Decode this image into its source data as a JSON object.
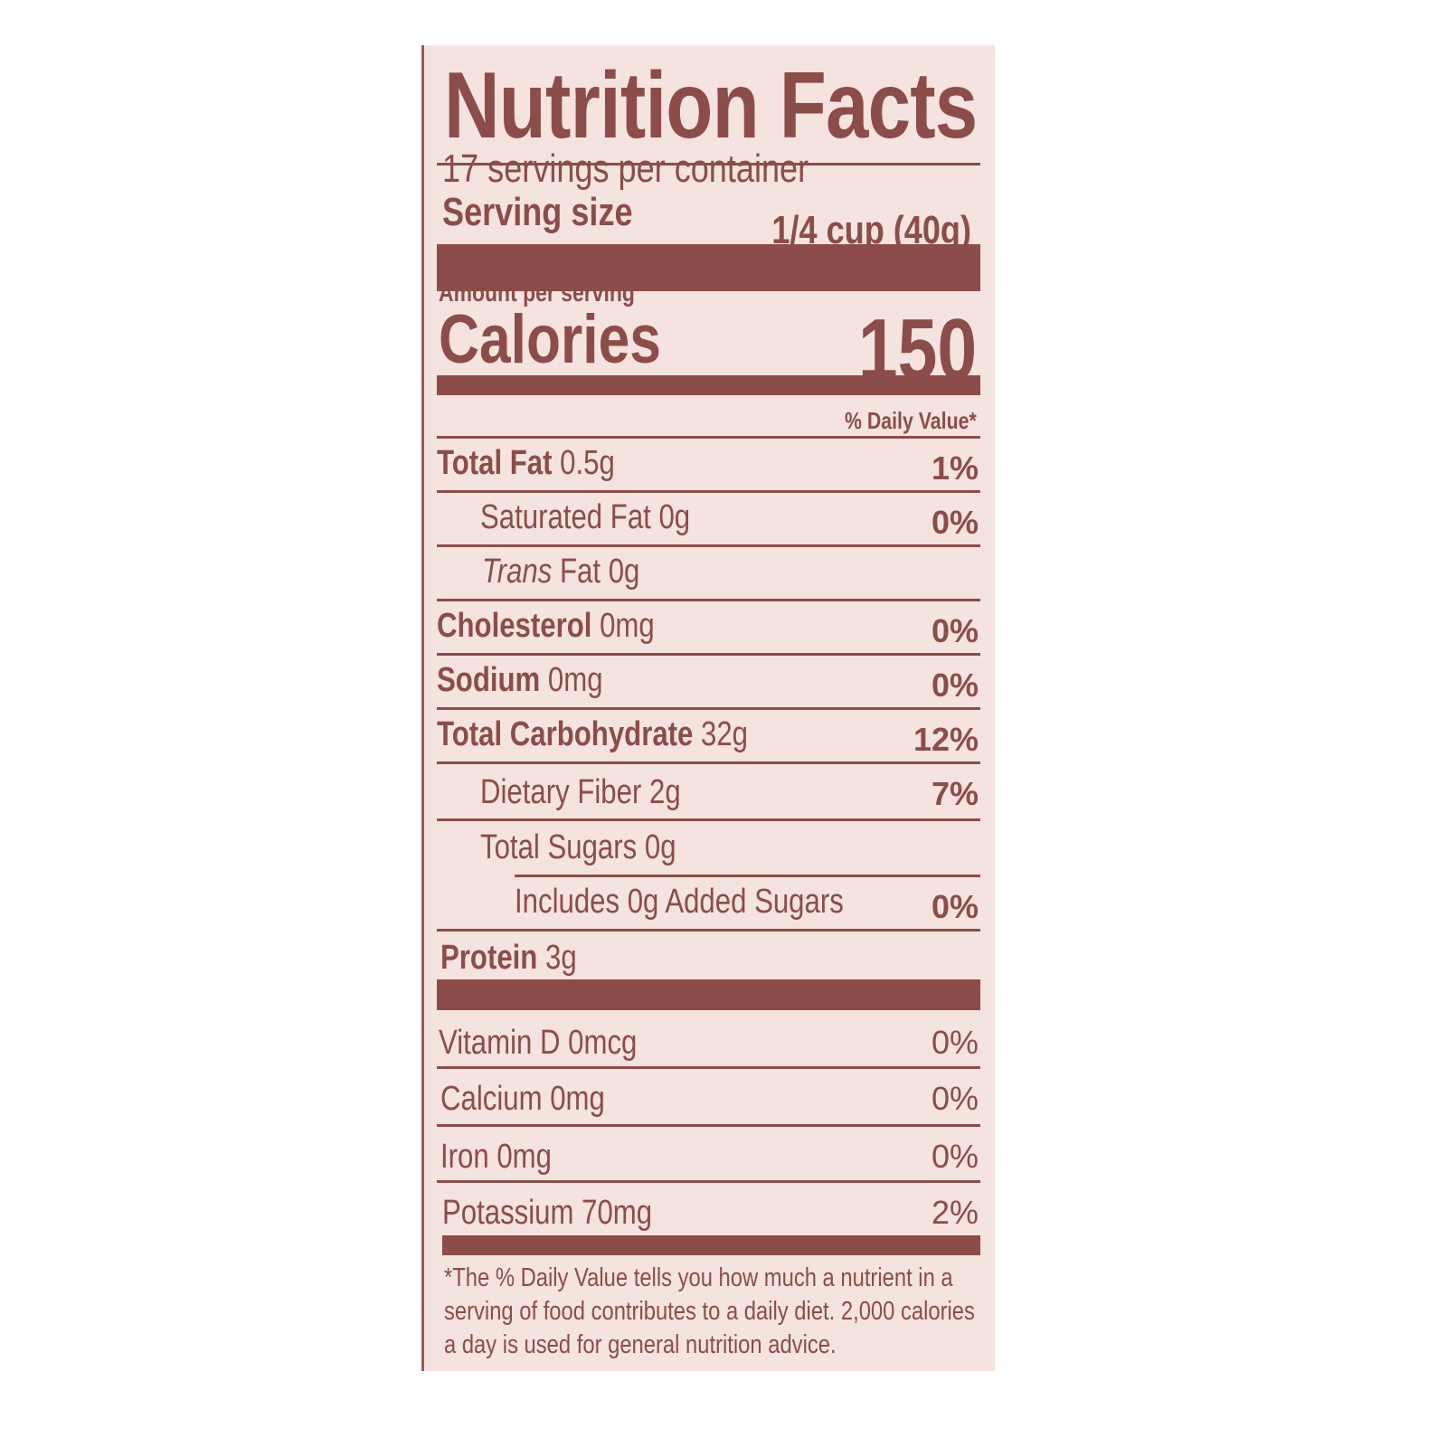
{
  "title": "Nutrition Facts",
  "servings_per_container": "17 servings per container",
  "serving_size_label": "Serving size",
  "serving_size_value": "1/4 cup (40g)",
  "amount_per_serving": "Amount per serving",
  "calories_label": "Calories",
  "calories_value": "150",
  "daily_value_header": "% Daily Value*",
  "nutrients": [
    {
      "name": "Total Fat",
      "amount": "0.5g",
      "dv": "1%"
    },
    {
      "name": "Saturated Fat",
      "amount": "0g",
      "dv": "0%"
    },
    {
      "name_italic": "Trans",
      "name": "Fat",
      "amount": "0g",
      "dv": ""
    },
    {
      "name": "Cholesterol",
      "amount": "0mg",
      "dv": "0%"
    },
    {
      "name": "Sodium",
      "amount": "0mg",
      "dv": "0%"
    },
    {
      "name": "Total Carbohydrate",
      "amount": "32g",
      "dv": "12%"
    },
    {
      "name": "Dietary Fiber",
      "amount": "2g",
      "dv": "7%"
    },
    {
      "name": "Total Sugars",
      "amount": "0g",
      "dv": ""
    },
    {
      "name": "Includes 0g Added Sugars",
      "amount": "",
      "dv": "0%"
    },
    {
      "name": "Protein",
      "amount": "3g",
      "dv": ""
    }
  ],
  "vitamins": [
    {
      "name": "Vitamin D 0mcg",
      "dv": "0%"
    },
    {
      "name": "Calcium 0mg",
      "dv": "0%"
    },
    {
      "name": "Iron 0mg",
      "dv": "0%"
    },
    {
      "name": "Potassium 70mg",
      "dv": "2%"
    }
  ],
  "footnote": "*The % Daily Value tells you how much a nutrient in a serving of food contributes to a daily diet. 2,000 calories a day is used for general nutrition advice.",
  "colors": {
    "ink": "#8c4c4a",
    "background": "#f4e3de"
  }
}
